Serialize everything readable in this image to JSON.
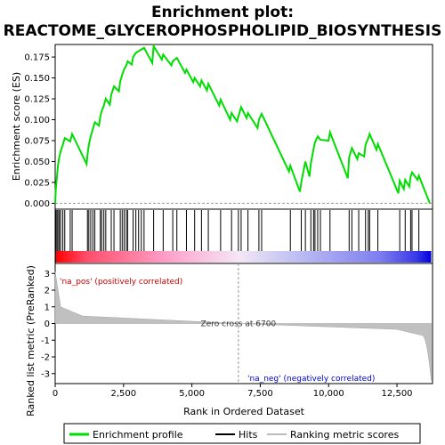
{
  "chart_data": {
    "type": "line",
    "title_line1": "Enrichment plot:",
    "title_line2": "REACTOME_GLYCEROPHOSPHOLIPID_BIOSYNTHESIS",
    "xlabel": "Rank in Ordered Dataset",
    "ylabel_top": "Enrichment score (ES)",
    "ylabel_bottom": "Ranked list metric (PreRanked)",
    "xlim": [
      0,
      13800
    ],
    "x_ticks": [
      0,
      2500,
      5000,
      7500,
      10000,
      12500
    ],
    "x_tick_labels": [
      "0",
      "2,500",
      "5,000",
      "7,500",
      "10,000",
      "12,500"
    ],
    "es_ylim": [
      -0.007,
      0.19
    ],
    "es_ticks": [
      0.0,
      0.025,
      0.05,
      0.075,
      0.1,
      0.125,
      0.15,
      0.175
    ],
    "es_tick_labels": [
      "0.000",
      "0.025",
      "0.050",
      "0.075",
      "0.100",
      "0.125",
      "0.150",
      "0.175"
    ],
    "metric_ylim": [
      -3.6,
      3.6
    ],
    "metric_ticks": [
      3,
      2,
      1,
      0,
      -1,
      -2,
      -3
    ],
    "metric_tick_labels": [
      "3",
      "2",
      "1",
      "0",
      "-1",
      "-2",
      "-3"
    ],
    "zero_cross_rank": 6700,
    "zero_cross_label": "Zero cross at 6700",
    "pos_label": "'na_pos' (positively correlated)",
    "neg_label": "'na_neg' (negatively correlated)",
    "n_genes": 13750,
    "hits": [
      20,
      60,
      100,
      150,
      200,
      280,
      350,
      550,
      620,
      1180,
      1230,
      1300,
      1380,
      1450,
      1650,
      1700,
      1780,
      1850,
      2050,
      2150,
      2380,
      2450,
      2520,
      2600,
      2650,
      2850,
      2950,
      3050,
      3150,
      3250,
      3600,
      3950,
      4300,
      4450,
      4800,
      5100,
      5350,
      5600,
      6050,
      6450,
      6700,
      6800,
      7050,
      7450,
      7550,
      8600,
      9000,
      9150,
      9350,
      9450,
      9500,
      9600,
      9700,
      10050,
      10750,
      10850,
      11100,
      11350,
      11450,
      11500,
      11800,
      12600,
      12800,
      13000,
      13050,
      13300
    ],
    "es_curve": [
      [
        0,
        0.0
      ],
      [
        20,
        0.015
      ],
      [
        60,
        0.03
      ],
      [
        100,
        0.045
      ],
      [
        150,
        0.055
      ],
      [
        200,
        0.062
      ],
      [
        280,
        0.07
      ],
      [
        350,
        0.078
      ],
      [
        550,
        0.074
      ],
      [
        620,
        0.083
      ],
      [
        1150,
        0.047
      ],
      [
        1180,
        0.058
      ],
      [
        1230,
        0.07
      ],
      [
        1300,
        0.08
      ],
      [
        1380,
        0.089
      ],
      [
        1450,
        0.097
      ],
      [
        1600,
        0.093
      ],
      [
        1650,
        0.104
      ],
      [
        1700,
        0.11
      ],
      [
        1780,
        0.117
      ],
      [
        1850,
        0.125
      ],
      [
        2000,
        0.118
      ],
      [
        2050,
        0.13
      ],
      [
        2150,
        0.14
      ],
      [
        2330,
        0.134
      ],
      [
        2380,
        0.146
      ],
      [
        2450,
        0.154
      ],
      [
        2520,
        0.16
      ],
      [
        2600,
        0.165
      ],
      [
        2650,
        0.17
      ],
      [
        2800,
        0.166
      ],
      [
        2850,
        0.175
      ],
      [
        2950,
        0.18
      ],
      [
        3050,
        0.182
      ],
      [
        3150,
        0.184
      ],
      [
        3250,
        0.186
      ],
      [
        3550,
        0.168
      ],
      [
        3600,
        0.188
      ],
      [
        3900,
        0.172
      ],
      [
        3950,
        0.178
      ],
      [
        4250,
        0.165
      ],
      [
        4300,
        0.17
      ],
      [
        4450,
        0.174
      ],
      [
        4750,
        0.156
      ],
      [
        4800,
        0.16
      ],
      [
        5050,
        0.145
      ],
      [
        5100,
        0.15
      ],
      [
        5300,
        0.14
      ],
      [
        5350,
        0.147
      ],
      [
        5550,
        0.135
      ],
      [
        5600,
        0.143
      ],
      [
        6000,
        0.117
      ],
      [
        6050,
        0.124
      ],
      [
        6400,
        0.1
      ],
      [
        6450,
        0.108
      ],
      [
        6650,
        0.098
      ],
      [
        6700,
        0.104
      ],
      [
        6800,
        0.115
      ],
      [
        7000,
        0.102
      ],
      [
        7050,
        0.108
      ],
      [
        7400,
        0.09
      ],
      [
        7450,
        0.1
      ],
      [
        7550,
        0.107
      ],
      [
        8550,
        0.038
      ],
      [
        8600,
        0.045
      ],
      [
        8950,
        0.014
      ],
      [
        9000,
        0.025
      ],
      [
        9150,
        0.05
      ],
      [
        9300,
        0.032
      ],
      [
        9350,
        0.048
      ],
      [
        9450,
        0.065
      ],
      [
        9500,
        0.073
      ],
      [
        9600,
        0.08
      ],
      [
        9700,
        0.076
      ],
      [
        10000,
        0.075
      ],
      [
        10050,
        0.085
      ],
      [
        10700,
        0.03
      ],
      [
        10750,
        0.055
      ],
      [
        10850,
        0.066
      ],
      [
        11050,
        0.053
      ],
      [
        11100,
        0.06
      ],
      [
        11300,
        0.056
      ],
      [
        11350,
        0.07
      ],
      [
        11450,
        0.078
      ],
      [
        11500,
        0.083
      ],
      [
        11750,
        0.064
      ],
      [
        11800,
        0.071
      ],
      [
        12550,
        0.012
      ],
      [
        12600,
        0.027
      ],
      [
        12750,
        0.017
      ],
      [
        12800,
        0.028
      ],
      [
        12950,
        0.02
      ],
      [
        13000,
        0.032
      ],
      [
        13050,
        0.037
      ],
      [
        13250,
        0.028
      ],
      [
        13300,
        0.033
      ],
      [
        13700,
        0.0
      ]
    ]
  },
  "legend": {
    "items": [
      {
        "label": "Enrichment profile",
        "color": "#00dd00"
      },
      {
        "label": "Hits",
        "color": "#000000"
      },
      {
        "label": "Ranking metric scores",
        "color": "#bbbbbb"
      }
    ]
  },
  "colors": {
    "es_line": "#00dd00",
    "hit": "#000000",
    "metric_fill": "#c0c0c0",
    "pos_text": "#cc0000",
    "neg_text": "#0000cc",
    "zero_line": "#999999"
  }
}
